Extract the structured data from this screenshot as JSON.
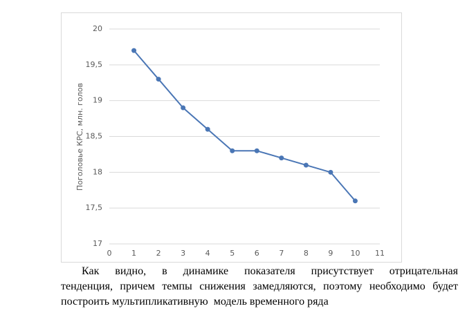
{
  "chart_data": {
    "type": "line",
    "y_label": "Поголовье КРС, млн. голов",
    "x": [
      1,
      2,
      3,
      4,
      5,
      6,
      7,
      8,
      9,
      10
    ],
    "series": [
      {
        "name": "Поголовье КРС",
        "color": "#4a76b5",
        "values": [
          19.7,
          19.3,
          18.9,
          18.6,
          18.3,
          18.3,
          18.2,
          18.1,
          18.0,
          17.6
        ]
      }
    ],
    "xlim": [
      0,
      11
    ],
    "xticks": [
      0,
      1,
      2,
      3,
      4,
      5,
      6,
      7,
      8,
      9,
      10,
      11
    ],
    "ylim": [
      17,
      20
    ],
    "yticks": [
      {
        "value": 17,
        "label": "17"
      },
      {
        "value": 17.5,
        "label": "17,5"
      },
      {
        "value": 18,
        "label": "18"
      },
      {
        "value": 18.5,
        "label": "18,5"
      },
      {
        "value": 19,
        "label": "19"
      },
      {
        "value": 19.5,
        "label": "19,5"
      },
      {
        "value": 20,
        "label": "20"
      }
    ],
    "grid": true
  },
  "paragraph": {
    "lines": [
      "Как видно, в динамике показателя присутствует отрицательная",
      "тенденция, причем темпы снижения замедляются, поэтому необходимо будет",
      "построить мультипликативную  модель временного ряда"
    ]
  }
}
